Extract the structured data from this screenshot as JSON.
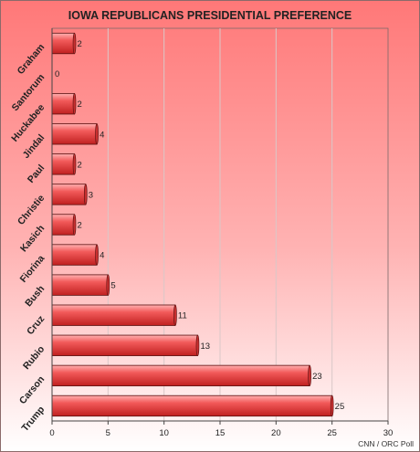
{
  "chart_data": {
    "type": "bar",
    "orientation": "horizontal",
    "title": "IOWA REPUBLICANS PRESIDENTIAL PREFERENCE",
    "categories": [
      "Graham",
      "Santorum",
      "Huckabee",
      "Jindal",
      "Paul",
      "Christie",
      "Kasich",
      "Fiorina",
      "Bush",
      "Cruz",
      "Rubio",
      "Carson",
      "Trump"
    ],
    "values": [
      2,
      0,
      2,
      4,
      2,
      3,
      2,
      4,
      5,
      11,
      13,
      23,
      25
    ],
    "xlim": [
      0,
      30
    ],
    "xticks": [
      0,
      5,
      10,
      15,
      20,
      25,
      30
    ],
    "xlabel": "",
    "ylabel": "",
    "grid": true,
    "source": "CNN / ORC Poll",
    "bar_color": "#ee4040"
  }
}
